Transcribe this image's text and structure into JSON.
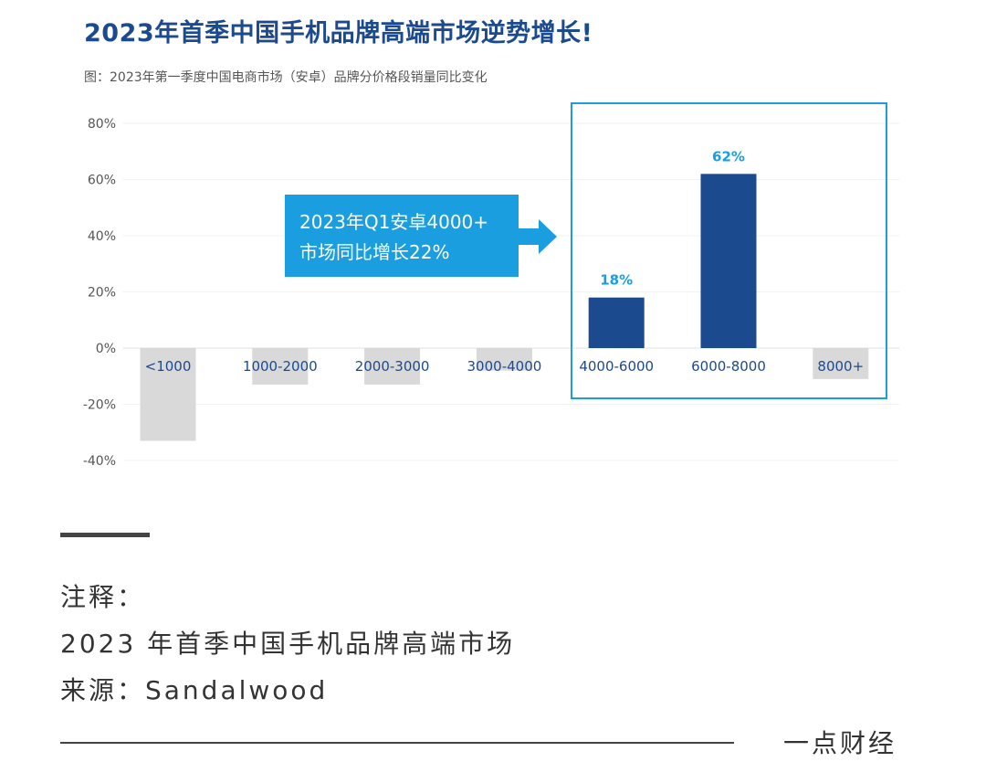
{
  "title": "2023年首季中国手机品牌高端市场逆势增长!",
  "subtitle": "图：2023年第一季度中国电商市场（安卓）品牌分价格段销量同比变化",
  "chart_data": {
    "type": "bar",
    "title": "2023年第一季度中国电商市场（安卓）品牌分价格段销量同比变化",
    "xlabel": "",
    "ylabel": "",
    "categories": [
      "<1000",
      "1000-2000",
      "2000-3000",
      "3000-4000",
      "4000-6000",
      "6000-8000",
      "8000+"
    ],
    "values": [
      -33,
      -13,
      -13,
      -8,
      18,
      62,
      -11
    ],
    "highlighted": [
      false,
      false,
      false,
      false,
      true,
      true,
      false
    ],
    "data_labels": [
      "",
      "",
      "",
      "",
      "18%",
      "62%",
      ""
    ],
    "ylim": [
      -40,
      80
    ],
    "yticks": [
      "80%",
      "60%",
      "40%",
      "20%",
      "0%",
      "-20%",
      "-40%"
    ],
    "ytick_values": [
      80,
      60,
      40,
      20,
      0,
      -20,
      -40
    ],
    "grid": true,
    "annotation": {
      "line1": "2023年Q1安卓4000+",
      "line2": "市场同比增长22%"
    },
    "colors": {
      "highlight": "#1c4a8f",
      "other": "#d9d9d9",
      "accent": "#1a9ee0",
      "label": "#1c4a8f"
    }
  },
  "notes": {
    "line1": "注释：",
    "line2": "2023 年首季中国手机品牌高端市场",
    "line3": "来源：Sandalwood"
  },
  "brand": "一点财经"
}
